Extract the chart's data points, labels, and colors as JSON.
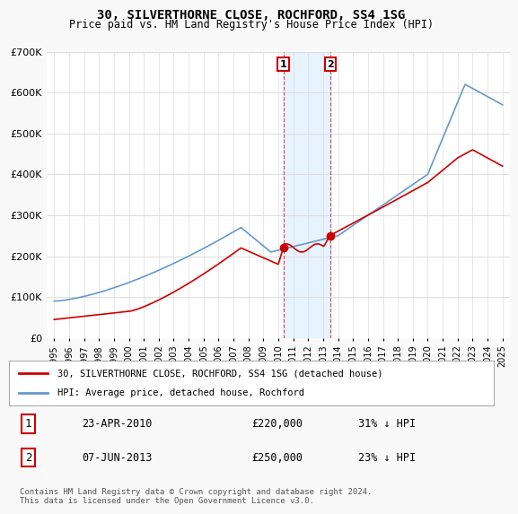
{
  "title": "30, SILVERTHORNE CLOSE, ROCHFORD, SS4 1SG",
  "subtitle": "Price paid vs. HM Land Registry's House Price Index (HPI)",
  "red_label": "30, SILVERTHORNE CLOSE, ROCHFORD, SS4 1SG (detached house)",
  "blue_label": "HPI: Average price, detached house, Rochford",
  "transactions": [
    {
      "num": 1,
      "date": "2010-04-23",
      "price": 220000,
      "pct": "31%",
      "dir": "↓"
    },
    {
      "num": 2,
      "date": "2013-06-07",
      "price": 250000,
      "pct": "23%",
      "dir": "↓"
    }
  ],
  "footer": "Contains HM Land Registry data © Crown copyright and database right 2024.\nThis data is licensed under the Open Government Licence v3.0.",
  "ylim": [
    0,
    700000
  ],
  "yticks": [
    0,
    100000,
    200000,
    300000,
    400000,
    500000,
    600000,
    700000
  ],
  "background_color": "#f9f9f9",
  "plot_bg": "#ffffff",
  "red_color": "#cc0000",
  "blue_color": "#6699cc",
  "shade_color": "#ddeeff",
  "marker_box_color": "#cc0000"
}
